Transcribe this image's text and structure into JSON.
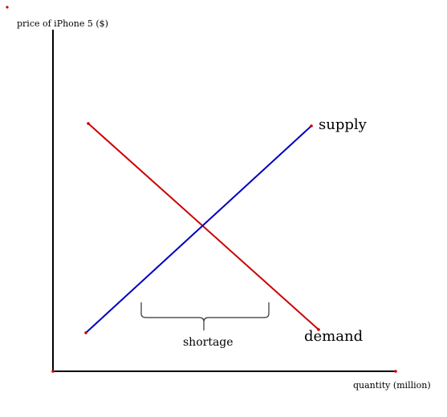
{
  "diagram": {
    "y_axis_label": "price of iPhone 5 ($)",
    "x_axis_label": "quantity (million)",
    "supply_label": "supply",
    "demand_label": "demand",
    "shortage_label": "shortage",
    "colors": {
      "supply": "#0000c0",
      "demand": "#cc0000",
      "axis": "#000000"
    }
  }
}
